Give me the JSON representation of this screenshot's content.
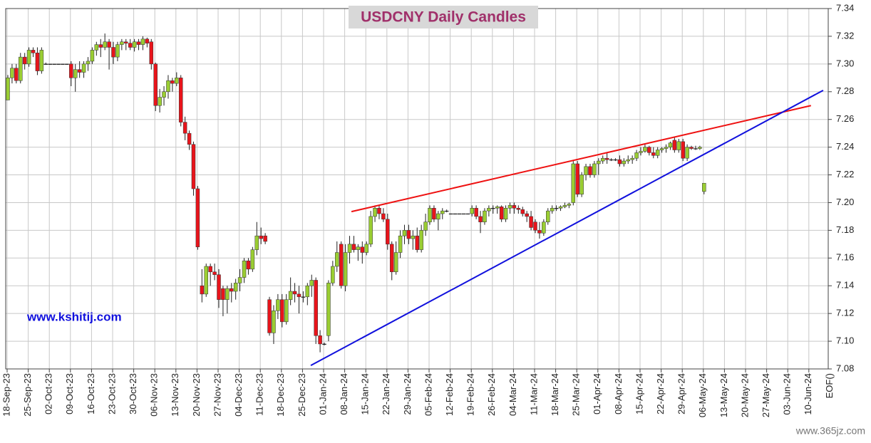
{
  "chart_data": {
    "type": "candlestick",
    "title": "USDCNY Daily Candles",
    "annotations": [
      "www.kshitij.com",
      "www.365jz.com"
    ],
    "categories": [
      "18-Sep-23",
      "25-Sep-23",
      "02-Oct-23",
      "09-Oct-23",
      "16-Oct-23",
      "23-Oct-23",
      "30-Oct-23",
      "06-Nov-23",
      "13-Nov-23",
      "20-Nov-23",
      "27-Nov-23",
      "04-Dec-23",
      "11-Dec-23",
      "18-Dec-23",
      "25-Dec-23",
      "01-Jan-24",
      "08-Jan-24",
      "15-Jan-24",
      "22-Jan-24",
      "29-Jan-24",
      "05-Feb-24",
      "12-Feb-24",
      "19-Feb-24",
      "26-Feb-24",
      "04-Mar-24",
      "11-Mar-24",
      "18-Mar-24",
      "25-Mar-24",
      "01-Apr-24",
      "08-Apr-24",
      "15-Apr-24",
      "22-Apr-24",
      "29-Apr-24",
      "06-May-24",
      "13-May-24",
      "20-May-24",
      "27-May-24",
      "03-Jun-24",
      "10-Jun-24",
      "EOF()"
    ],
    "ylim": [
      7.08,
      7.34
    ],
    "yticks": [
      7.08,
      {
        "value": 7.1,
        "label": "7.10"
      },
      7.12,
      7.14,
      7.16,
      7.18,
      {
        "value": 7.2,
        "label": "7.20"
      },
      7.22,
      7.24,
      7.26,
      7.28,
      {
        "value": 7.3,
        "label": "7.30"
      },
      7.32,
      7.34
    ],
    "grid": true,
    "up_color": "#9acd32",
    "down_color": "#e8141b",
    "ohlc": [
      [
        7.274,
        7.292,
        7.274,
        7.29
      ],
      [
        7.29,
        7.3,
        7.286,
        7.297
      ],
      [
        7.297,
        7.3,
        7.286,
        7.288
      ],
      [
        7.288,
        7.308,
        7.286,
        7.305
      ],
      [
        7.305,
        7.308,
        7.296,
        7.3
      ],
      [
        7.3,
        7.312,
        7.298,
        7.31
      ],
      [
        7.31,
        7.312,
        7.305,
        7.308
      ],
      [
        7.308,
        7.312,
        7.292,
        7.295
      ],
      [
        7.295,
        7.312,
        7.293,
        7.31
      ],
      [
        7.3,
        7.301,
        7.3,
        7.3
      ],
      [
        7.3,
        7.3,
        7.3,
        7.3
      ],
      [
        7.3,
        7.3,
        7.3,
        7.3
      ],
      [
        7.3,
        7.3,
        7.3,
        7.3
      ],
      [
        7.3,
        7.3,
        7.3,
        7.3
      ],
      [
        7.3,
        7.3,
        7.3,
        7.3
      ],
      [
        7.3,
        7.302,
        7.284,
        7.29
      ],
      [
        7.29,
        7.3,
        7.28,
        7.296
      ],
      [
        7.296,
        7.302,
        7.29,
        7.294
      ],
      [
        7.294,
        7.302,
        7.29,
        7.3
      ],
      [
        7.3,
        7.305,
        7.295,
        7.302
      ],
      [
        7.302,
        7.312,
        7.3,
        7.31
      ],
      [
        7.31,
        7.316,
        7.306,
        7.314
      ],
      [
        7.314,
        7.318,
        7.305,
        7.312
      ],
      [
        7.312,
        7.322,
        7.31,
        7.316
      ],
      [
        7.316,
        7.318,
        7.296,
        7.312
      ],
      [
        7.312,
        7.316,
        7.3,
        7.305
      ],
      [
        7.305,
        7.316,
        7.302,
        7.314
      ],
      [
        7.314,
        7.318,
        7.31,
        7.316
      ],
      [
        7.316,
        7.318,
        7.31,
        7.315
      ],
      [
        7.315,
        7.318,
        7.31,
        7.312
      ],
      [
        7.312,
        7.318,
        7.309,
        7.316
      ],
      [
        7.316,
        7.318,
        7.31,
        7.314
      ],
      [
        7.314,
        7.32,
        7.31,
        7.318
      ],
      [
        7.318,
        7.319,
        7.312,
        7.315
      ],
      [
        7.316,
        7.318,
        7.296,
        7.3
      ],
      [
        7.3,
        7.301,
        7.266,
        7.27
      ],
      [
        7.27,
        7.282,
        7.265,
        7.276
      ],
      [
        7.276,
        7.284,
        7.27,
        7.28
      ],
      [
        7.28,
        7.292,
        7.275,
        7.288
      ],
      [
        7.288,
        7.29,
        7.28,
        7.286
      ],
      [
        7.286,
        7.294,
        7.284,
        7.29
      ],
      [
        7.29,
        7.292,
        7.255,
        7.258
      ],
      [
        7.258,
        7.262,
        7.245,
        7.25
      ],
      [
        7.25,
        7.252,
        7.238,
        7.242
      ],
      [
        7.242,
        7.244,
        7.205,
        7.21
      ],
      [
        7.21,
        7.212,
        7.166,
        7.168
      ],
      [
        7.14,
        7.152,
        7.128,
        7.134
      ],
      [
        7.134,
        7.156,
        7.132,
        7.154
      ],
      [
        7.154,
        7.156,
        7.14,
        7.15
      ],
      [
        7.15,
        7.156,
        7.144,
        7.148
      ],
      [
        7.148,
        7.152,
        7.124,
        7.13
      ],
      [
        7.138,
        7.14,
        7.118,
        7.13
      ],
      [
        7.13,
        7.14,
        7.12,
        7.138
      ],
      [
        7.138,
        7.142,
        7.128,
        7.136
      ],
      [
        7.136,
        7.145,
        7.13,
        7.142
      ],
      [
        7.142,
        7.152,
        7.136,
        7.146
      ],
      [
        7.146,
        7.16,
        7.142,
        7.158
      ],
      [
        7.158,
        7.16,
        7.148,
        7.152
      ],
      [
        7.152,
        7.168,
        7.15,
        7.166
      ],
      [
        7.166,
        7.186,
        7.162,
        7.176
      ],
      [
        7.176,
        7.182,
        7.17,
        7.174
      ],
      [
        7.176,
        7.178,
        7.17,
        7.172
      ],
      [
        7.13,
        7.132,
        7.104,
        7.106
      ],
      [
        7.106,
        7.126,
        7.098,
        7.122
      ],
      [
        7.122,
        7.134,
        7.116,
        7.13
      ],
      [
        7.13,
        7.134,
        7.11,
        7.114
      ],
      [
        7.114,
        7.134,
        7.112,
        7.13
      ],
      [
        7.13,
        7.146,
        7.126,
        7.136
      ],
      [
        7.136,
        7.142,
        7.128,
        7.134
      ],
      [
        7.134,
        7.14,
        7.12,
        7.132
      ],
      [
        7.132,
        7.136,
        7.128,
        7.132
      ],
      [
        7.132,
        7.142,
        7.126,
        7.14
      ],
      [
        7.14,
        7.148,
        7.132,
        7.144
      ],
      [
        7.144,
        7.146,
        7.098,
        7.104
      ],
      [
        7.104,
        7.108,
        7.092,
        7.098
      ],
      [
        7.098,
        7.099,
        7.097,
        7.098
      ],
      [
        7.104,
        7.144,
        7.1,
        7.142
      ],
      [
        7.142,
        7.158,
        7.14,
        7.154
      ],
      [
        7.154,
        7.172,
        7.15,
        7.164
      ],
      [
        7.17,
        7.172,
        7.138,
        7.14
      ],
      [
        7.14,
        7.17,
        7.136,
        7.164
      ],
      [
        7.164,
        7.176,
        7.156,
        7.17
      ],
      [
        7.17,
        7.176,
        7.164,
        7.166
      ],
      [
        7.166,
        7.17,
        7.158,
        7.168
      ],
      [
        7.168,
        7.172,
        7.156,
        7.164
      ],
      [
        7.164,
        7.172,
        7.162,
        7.17
      ],
      [
        7.17,
        7.194,
        7.168,
        7.19
      ],
      [
        7.19,
        7.198,
        7.186,
        7.196
      ],
      [
        7.196,
        7.198,
        7.188,
        7.192
      ],
      [
        7.192,
        7.196,
        7.186,
        7.188
      ],
      [
        7.188,
        7.192,
        7.166,
        7.17
      ],
      [
        7.17,
        7.172,
        7.144,
        7.15
      ],
      [
        7.15,
        7.172,
        7.148,
        7.164
      ],
      [
        7.164,
        7.18,
        7.16,
        7.176
      ],
      [
        7.176,
        7.184,
        7.17,
        7.18
      ],
      [
        7.18,
        7.184,
        7.17,
        7.174
      ],
      [
        7.174,
        7.18,
        7.166,
        7.176
      ],
      [
        7.176,
        7.182,
        7.164,
        7.166
      ],
      [
        7.166,
        7.184,
        7.164,
        7.18
      ],
      [
        7.18,
        7.192,
        7.176,
        7.186
      ],
      [
        7.186,
        7.198,
        7.184,
        7.196
      ],
      [
        7.196,
        7.198,
        7.186,
        7.188
      ],
      [
        7.188,
        7.194,
        7.18,
        7.192
      ],
      [
        7.192,
        7.196,
        7.188,
        7.194
      ],
      [
        7.194,
        7.195,
        7.193,
        7.194
      ],
      [
        7.192,
        7.192,
        7.192,
        7.192
      ],
      [
        7.192,
        7.192,
        7.192,
        7.192
      ],
      [
        7.192,
        7.192,
        7.192,
        7.192
      ],
      [
        7.192,
        7.192,
        7.192,
        7.192
      ],
      [
        7.192,
        7.192,
        7.192,
        7.192
      ],
      [
        7.192,
        7.198,
        7.19,
        7.196
      ],
      [
        7.196,
        7.198,
        7.188,
        7.19
      ],
      [
        7.19,
        7.194,
        7.178,
        7.186
      ],
      [
        7.186,
        7.196,
        7.184,
        7.194
      ],
      [
        7.194,
        7.198,
        7.19,
        7.196
      ],
      [
        7.196,
        7.198,
        7.192,
        7.196
      ],
      [
        7.196,
        7.198,
        7.192,
        7.197
      ],
      [
        7.197,
        7.198,
        7.186,
        7.188
      ],
      [
        7.188,
        7.198,
        7.186,
        7.196
      ],
      [
        7.196,
        7.2,
        7.192,
        7.198
      ],
      [
        7.198,
        7.2,
        7.192,
        7.196
      ],
      [
        7.196,
        7.198,
        7.192,
        7.195
      ],
      [
        7.195,
        7.197,
        7.19,
        7.192
      ],
      [
        7.192,
        7.194,
        7.186,
        7.19
      ],
      [
        7.19,
        7.194,
        7.18,
        7.182
      ],
      [
        7.186,
        7.188,
        7.178,
        7.18
      ],
      [
        7.18,
        7.186,
        7.174,
        7.178
      ],
      [
        7.178,
        7.188,
        7.176,
        7.186
      ],
      [
        7.186,
        7.196,
        7.184,
        7.194
      ],
      [
        7.194,
        7.198,
        7.192,
        7.196
      ],
      [
        7.196,
        7.198,
        7.194,
        7.196
      ],
      [
        7.196,
        7.198,
        7.194,
        7.197
      ],
      [
        7.197,
        7.2,
        7.196,
        7.198
      ],
      [
        7.198,
        7.2,
        7.196,
        7.199
      ],
      [
        7.2,
        7.23,
        7.198,
        7.228
      ],
      [
        7.228,
        7.23,
        7.204,
        7.206
      ],
      [
        7.206,
        7.222,
        7.204,
        7.22
      ],
      [
        7.22,
        7.228,
        7.216,
        7.226
      ],
      [
        7.226,
        7.228,
        7.218,
        7.22
      ],
      [
        7.22,
        7.23,
        7.218,
        7.228
      ],
      [
        7.228,
        7.232,
        7.22,
        7.23
      ],
      [
        7.23,
        7.234,
        7.228,
        7.232
      ],
      [
        7.232,
        7.236,
        7.228,
        7.231
      ],
      [
        7.231,
        7.232,
        7.23,
        7.231
      ],
      [
        7.231,
        7.232,
        7.23,
        7.231
      ],
      [
        7.231,
        7.234,
        7.226,
        7.228
      ],
      [
        7.228,
        7.232,
        7.226,
        7.23
      ],
      [
        7.23,
        7.234,
        7.228,
        7.231
      ],
      [
        7.231,
        7.234,
        7.228,
        7.232
      ],
      [
        7.232,
        7.238,
        7.23,
        7.236
      ],
      [
        7.236,
        7.24,
        7.234,
        7.237
      ],
      [
        7.237,
        7.242,
        7.236,
        7.24
      ],
      [
        7.24,
        7.241,
        7.234,
        7.236
      ],
      [
        7.236,
        7.24,
        7.232,
        7.234
      ],
      [
        7.234,
        7.24,
        7.232,
        7.238
      ],
      [
        7.238,
        7.24,
        7.236,
        7.239
      ],
      [
        7.239,
        7.242,
        7.236,
        7.24
      ],
      [
        7.24,
        7.244,
        7.238,
        7.243
      ],
      [
        7.245,
        7.247,
        7.236,
        7.238
      ],
      [
        7.238,
        7.246,
        7.236,
        7.244
      ],
      [
        7.244,
        7.246,
        7.23,
        7.232
      ],
      [
        7.232,
        7.242,
        7.23,
        7.24
      ],
      [
        7.24,
        7.241,
        7.238,
        7.239
      ],
      [
        7.239,
        7.241,
        7.238,
        7.239
      ],
      [
        7.239,
        7.241,
        7.238,
        7.24
      ],
      [
        7.208,
        7.214,
        7.206,
        7.214
      ]
    ],
    "trendlines": [
      {
        "color": "#ee1111",
        "x": [
          81.6,
          190.5
        ],
        "values": [
          7.1935,
          7.27
        ]
      },
      {
        "color": "#1111dd",
        "x": [
          71.96,
          193.4
        ],
        "values": [
          7.0825,
          7.281
        ]
      }
    ]
  }
}
